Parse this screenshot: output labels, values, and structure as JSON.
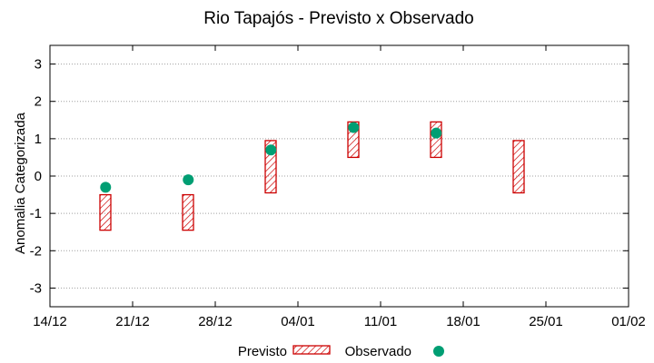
{
  "chart_data": {
    "type": "range-bar-with-points",
    "title": "Rio Tapajós - Previsto x Observado",
    "xlabel": "",
    "ylabel": "Anomalia Categorizada",
    "ylim": [
      -3.5,
      3.5
    ],
    "yticks": [
      "3",
      "2",
      "1",
      "0",
      "-1",
      "-2",
      "-3"
    ],
    "ytick_values": [
      3,
      2,
      1,
      0,
      -1,
      -2,
      -3
    ],
    "xtick_labels": [
      "14/12",
      "21/12",
      "28/12",
      "04/01",
      "11/01",
      "18/01",
      "25/01",
      "01/02"
    ],
    "grid": "horizontal dotted",
    "legend_position": "bottom",
    "series": [
      {
        "name": "Previsto",
        "style": "hatched-box",
        "color": "#cc0000",
        "points": [
          {
            "x": 1.0,
            "low": -1.45,
            "high": -0.5
          },
          {
            "x": 2.0,
            "low": -1.45,
            "high": -0.5
          },
          {
            "x": 3.0,
            "low": -0.45,
            "high": 0.95
          },
          {
            "x": 4.0,
            "low": 0.5,
            "high": 1.45
          },
          {
            "x": 5.0,
            "low": 0.5,
            "high": 1.45
          },
          {
            "x": 6.0,
            "low": -0.45,
            "high": 0.95
          }
        ]
      },
      {
        "name": "Observado",
        "style": "point",
        "color": "#009e73",
        "points": [
          {
            "x": 0.86,
            "y": -0.3
          },
          {
            "x": 1.86,
            "y": -0.1
          },
          {
            "x": 2.86,
            "y": 0.7
          },
          {
            "x": 3.86,
            "y": 1.3
          },
          {
            "x": 4.86,
            "y": 1.15
          }
        ]
      }
    ]
  }
}
